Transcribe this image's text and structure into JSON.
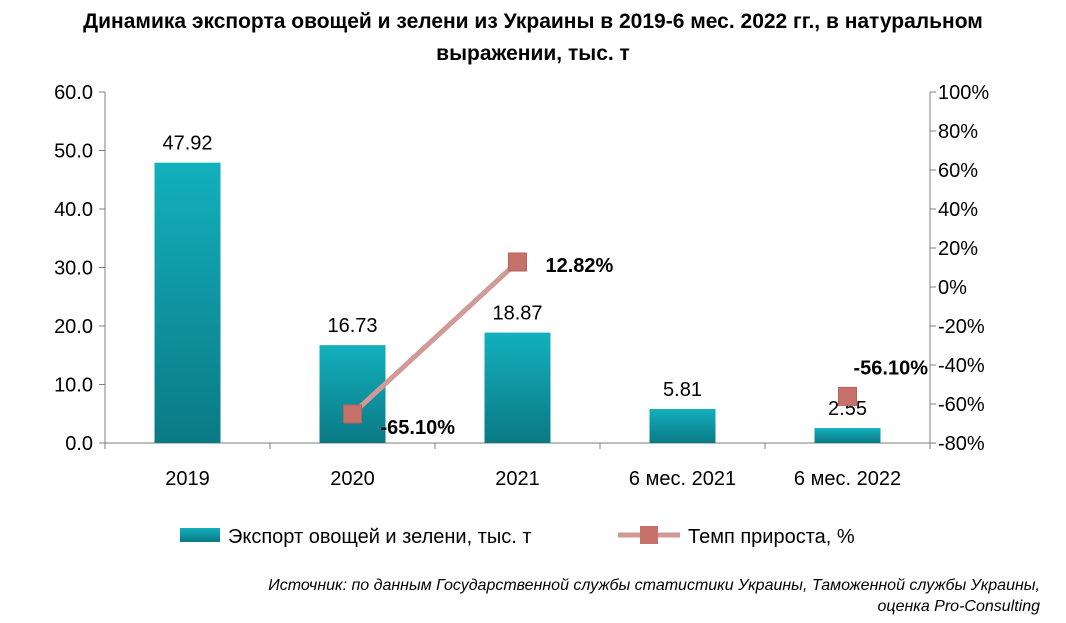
{
  "title_line1": "Динамика экспорта овощей и зелени из Украины в 2019-6 мес. 2022 гг., в натуральном",
  "title_line2": "выражении, тыс. т",
  "source_line1": "Источник: по данным Государственной службы статистики Украины, Таможенной службы Украины,",
  "source_line2": "оценка Pro-Consulting",
  "colors": {
    "bar": "#0aa0ae",
    "bar_dark": "#0a7f8a",
    "line": "#d19a97",
    "marker": "#c7716b"
  },
  "chart_data": {
    "type": "bar",
    "categories": [
      "2019",
      "2020",
      "2021",
      "6 мес. 2021",
      "6 мес. 2022"
    ],
    "series": [
      {
        "name": "Экспорт овощей и зелени, тыс. т",
        "type": "bar",
        "axis": "left",
        "values": [
          47.92,
          16.73,
          18.87,
          5.81,
          2.55
        ],
        "labels": [
          "47.92",
          "16.73",
          "18.87",
          "5.81",
          "2.55"
        ]
      },
      {
        "name": "Темп прироста, %",
        "type": "line",
        "axis": "right",
        "values": [
          null,
          -65.1,
          12.82,
          null,
          -56.1
        ],
        "labels": [
          "",
          "-65.10%",
          "12.82%",
          "",
          "-56.10%"
        ]
      }
    ],
    "y_left": {
      "min": 0,
      "max": 60,
      "ticks": [
        "0.0",
        "10.0",
        "20.0",
        "30.0",
        "40.0",
        "50.0",
        "60.0"
      ]
    },
    "y_right": {
      "min": -80,
      "max": 100,
      "ticks": [
        "-80%",
        "-60%",
        "-40%",
        "-20%",
        "0%",
        "20%",
        "40%",
        "60%",
        "80%",
        "100%"
      ]
    },
    "legend_position": "bottom",
    "grid": false
  }
}
